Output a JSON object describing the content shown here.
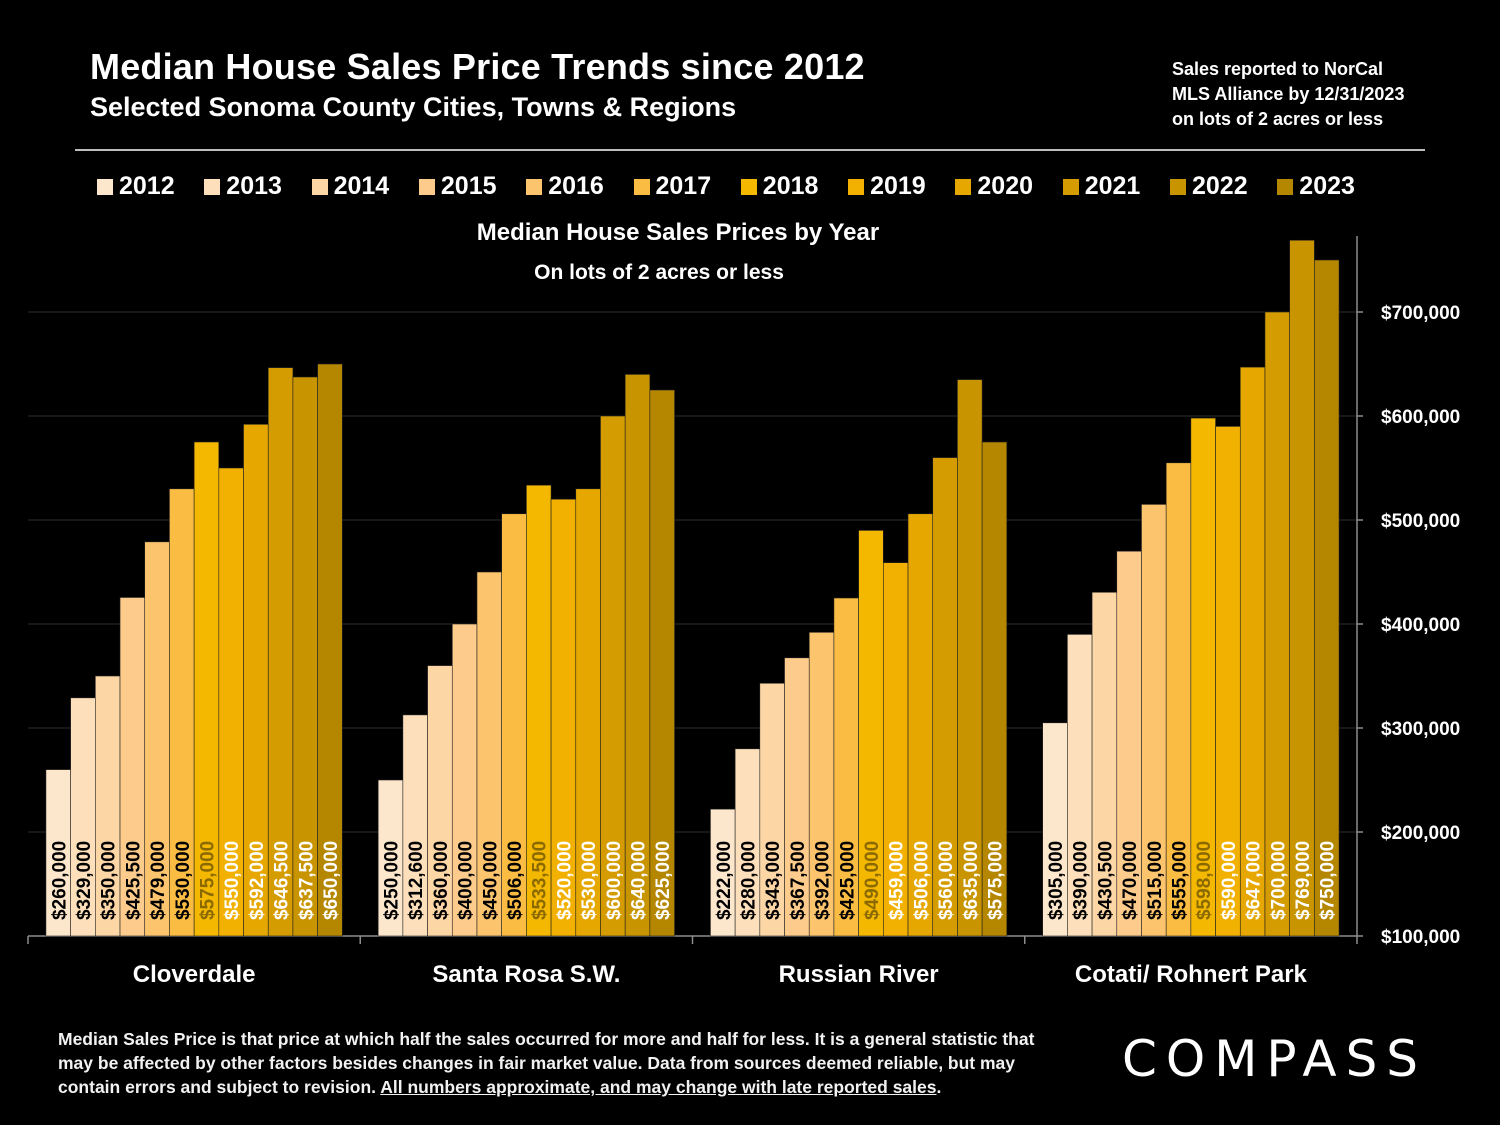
{
  "header": {
    "title": "Median House Sales Price Trends since 2012",
    "subtitle": "Selected Sonoma County Cities, Towns & Regions",
    "note_lines": [
      "Sales reported to NorCal",
      "MLS Alliance by 12/31/2023",
      "on lots of 2 acres or less"
    ]
  },
  "colors": [
    "#fde7cc",
    "#fde0bb",
    "#fdd6a6",
    "#fdcb8c",
    "#fdc46e",
    "#fbbc43",
    "#f5b800",
    "#f2b100",
    "#e5a700",
    "#d49c00",
    "#c89400",
    "#b58600"
  ],
  "footer": {
    "text": "Median Sales Price is that price at which half the sales occurred for more and half for less. It is a general statistic that may be affected by other factors besides changes in fair market value. Data from sources deemed reliable, but may contain errors and subject to revision.",
    "underlined": "All numbers approximate, and may change with late reported sales",
    "end": "."
  },
  "logo": "COMPASS",
  "chart_data": {
    "type": "bar",
    "title": "Median House Sales Prices by Year",
    "subtitle": "On lots of 2 acres or less",
    "categories": [
      "Cloverdale",
      "Santa Rosa S.W.",
      "Russian River",
      "Cotati/ Rohnert Park"
    ],
    "ylim": [
      100000,
      770000
    ],
    "yticks": [
      100000,
      200000,
      300000,
      400000,
      500000,
      600000,
      700000
    ],
    "ytick_labels": [
      "$100,000",
      "$200,000",
      "$300,000",
      "$400,000",
      "$500,000",
      "$600,000",
      "$700,000"
    ],
    "series": [
      {
        "name": "2012",
        "values": [
          260000,
          250000,
          222000,
          305000
        ],
        "labels": [
          "$260,000",
          "$250,000",
          "$222,000",
          "$305,000"
        ]
      },
      {
        "name": "2013",
        "values": [
          329000,
          312600,
          280000,
          390000
        ],
        "labels": [
          "$329,000",
          "$312,600",
          "$280,000",
          "$390,000"
        ]
      },
      {
        "name": "2014",
        "values": [
          350000,
          360000,
          343000,
          430500
        ],
        "labels": [
          "$350,000",
          "$360,000",
          "$343,000",
          "$430,500"
        ]
      },
      {
        "name": "2015",
        "values": [
          425500,
          400000,
          367500,
          470000
        ],
        "labels": [
          "$425,500",
          "$400,000",
          "$367,500",
          "$470,000"
        ]
      },
      {
        "name": "2016",
        "values": [
          479000,
          450000,
          392000,
          515000
        ],
        "labels": [
          "$479,000",
          "$450,000",
          "$392,000",
          "$515,000"
        ]
      },
      {
        "name": "2017",
        "values": [
          530000,
          506000,
          425000,
          555000
        ],
        "labels": [
          "$530,000",
          "$506,000",
          "$425,000",
          "$555,000"
        ]
      },
      {
        "name": "2018",
        "values": [
          575000,
          533500,
          490000,
          598000
        ],
        "labels": [
          "$575,000",
          "$533,500",
          "$490,000",
          "$598,000"
        ]
      },
      {
        "name": "2019",
        "values": [
          550000,
          520000,
          459000,
          590000
        ],
        "labels": [
          "$550,000",
          "$520,000",
          "$459,000",
          "$590,000"
        ]
      },
      {
        "name": "2020",
        "values": [
          592000,
          530000,
          506000,
          647000
        ],
        "labels": [
          "$592,000",
          "$530,000",
          "$506,000",
          "$647,000"
        ]
      },
      {
        "name": "2021",
        "values": [
          646500,
          600000,
          560000,
          700000
        ],
        "labels": [
          "$646,500",
          "$600,000",
          "$560,000",
          "$700,000"
        ]
      },
      {
        "name": "2022",
        "values": [
          637500,
          640000,
          635000,
          769000
        ],
        "labels": [
          "$637,500",
          "$640,000",
          "$635,000",
          "$769,000"
        ]
      },
      {
        "name": "2023",
        "values": [
          650000,
          625000,
          575000,
          750000
        ],
        "labels": [
          "$650,000",
          "$625,000",
          "$575,000",
          "$750,000"
        ]
      }
    ],
    "label_colors": [
      "#000",
      "#000",
      "#000",
      "#000",
      "#000",
      "#000",
      "#8a6a00",
      "#fff",
      "#fff",
      "#fff",
      "#fff",
      "#fff"
    ],
    "legend_position": "top"
  }
}
